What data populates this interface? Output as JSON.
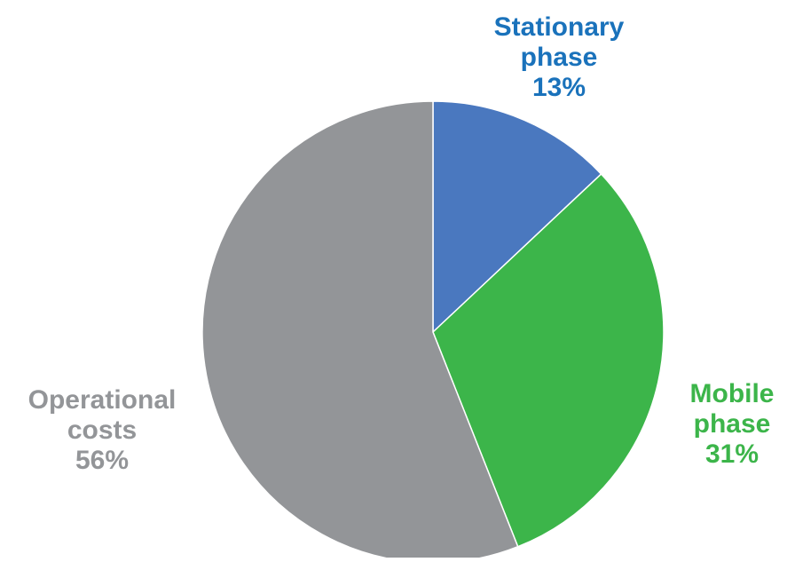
{
  "chart_data": {
    "type": "pie",
    "slices": [
      {
        "name": "Stationary phase",
        "label_lines": [
          "Stationary",
          "phase"
        ],
        "value": 13,
        "value_label": "13%",
        "color": "#4a78bf"
      },
      {
        "name": "Mobile phase",
        "label_lines": [
          "Mobile",
          "phase"
        ],
        "value": 31,
        "value_label": "31%",
        "color": "#3cb54a"
      },
      {
        "name": "Operational costs",
        "label_lines": [
          "Operational",
          "costs"
        ],
        "value": 56,
        "value_label": "56%",
        "color": "#939598"
      }
    ],
    "unit": "%",
    "start_angle": "12 o'clock",
    "direction": "clockwise",
    "legend": "none"
  }
}
